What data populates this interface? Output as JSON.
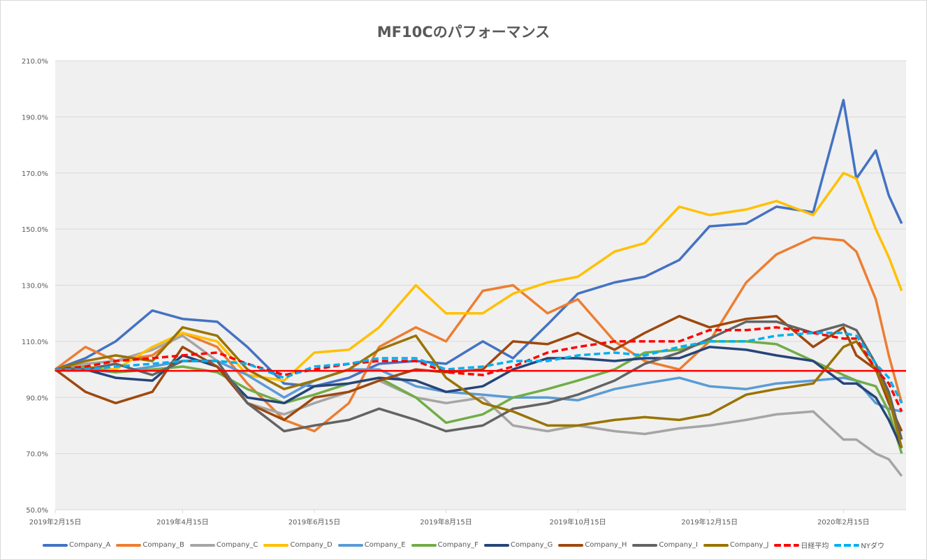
{
  "chart_data": {
    "type": "line",
    "title": "MF10Cのパフォーマンス",
    "xlabel": "",
    "ylabel": "",
    "ylim": [
      50,
      210
    ],
    "yticks": [
      50,
      70,
      90,
      110,
      130,
      150,
      170,
      190,
      210
    ],
    "ytick_labels": [
      "50.0%",
      "70.0%",
      "90.0%",
      "110.0%",
      "130.0%",
      "150.0%",
      "170.0%",
      "190.0%",
      "210.0%"
    ],
    "xlim": [
      "2019-02-15",
      "2020-03-15"
    ],
    "xticks": [
      "2019-02-15",
      "2019-04-15",
      "2019-06-15",
      "2019-08-15",
      "2019-10-15",
      "2019-12-15",
      "2020-02-15"
    ],
    "xtick_labels": [
      "2019年2月15日",
      "2019年4月15日",
      "2019年6月15日",
      "2019年8月15日",
      "2019年10月15日",
      "2019年12月15日",
      "2020年2月15日"
    ],
    "grid": true,
    "legend_position": "bottom",
    "reference_line": {
      "value": 100,
      "color": "#ff0000"
    },
    "x": [
      "2019-02-15",
      "2019-03-01",
      "2019-03-15",
      "2019-04-01",
      "2019-04-15",
      "2019-05-01",
      "2019-05-15",
      "2019-06-01",
      "2019-06-15",
      "2019-07-01",
      "2019-07-15",
      "2019-08-01",
      "2019-08-15",
      "2019-09-01",
      "2019-09-15",
      "2019-10-01",
      "2019-10-15",
      "2019-11-01",
      "2019-11-15",
      "2019-12-01",
      "2019-12-15",
      "2020-01-01",
      "2020-01-15",
      "2020-02-01",
      "2020-02-15",
      "2020-02-21",
      "2020-03-01",
      "2020-03-07",
      "2020-03-13"
    ],
    "series": [
      {
        "name": "Company_A",
        "color": "#4472c4",
        "dash": false,
        "values": [
          100,
          104,
          110,
          121,
          118,
          117,
          108,
          95,
          94,
          97,
          102,
          103,
          102,
          110,
          104,
          116,
          127,
          131,
          133,
          139,
          151,
          152,
          158,
          156,
          196,
          168,
          178,
          162,
          152
        ]
      },
      {
        "name": "Company_B",
        "color": "#ed7d31",
        "dash": false,
        "values": [
          100,
          108,
          103,
          105,
          113,
          108,
          95,
          82,
          78,
          88,
          108,
          115,
          110,
          128,
          130,
          120,
          125,
          110,
          103,
          100,
          110,
          131,
          141,
          147,
          146,
          142,
          125,
          105,
          88
        ]
      },
      {
        "name": "Company_C",
        "color": "#a5a5a5",
        "dash": false,
        "values": [
          100,
          102,
          103,
          107,
          112,
          103,
          88,
          84,
          88,
          92,
          96,
          90,
          88,
          90,
          80,
          78,
          80,
          78,
          77,
          79,
          80,
          82,
          84,
          85,
          75,
          75,
          70,
          68,
          62
        ]
      },
      {
        "name": "Company_D",
        "color": "#ffc000",
        "dash": false,
        "values": [
          100,
          101,
          100,
          108,
          113,
          110,
          98,
          96,
          106,
          107,
          115,
          130,
          120,
          120,
          127,
          131,
          133,
          142,
          145,
          158,
          155,
          157,
          160,
          155,
          170,
          168,
          150,
          140,
          128
        ]
      },
      {
        "name": "Company_E",
        "color": "#5b9bd5",
        "dash": false,
        "values": [
          100,
          100,
          99,
          101,
          103,
          103,
          98,
          90,
          96,
          100,
          100,
          94,
          92,
          91,
          90,
          90,
          89,
          93,
          95,
          97,
          94,
          93,
          95,
          96,
          97,
          96,
          88,
          86,
          85
        ]
      },
      {
        "name": "Company_F",
        "color": "#70ad47",
        "dash": false,
        "values": [
          100,
          101,
          99,
          100,
          101,
          99,
          93,
          88,
          91,
          95,
          97,
          90,
          81,
          84,
          90,
          93,
          96,
          100,
          106,
          107,
          110,
          110,
          109,
          103,
          98,
          96,
          94,
          85,
          70
        ]
      },
      {
        "name": "Company_G",
        "color": "#264478",
        "dash": false,
        "values": [
          100,
          100,
          97,
          96,
          105,
          101,
          90,
          88,
          94,
          95,
          97,
          96,
          92,
          94,
          100,
          104,
          104,
          103,
          104,
          104,
          108,
          107,
          105,
          103,
          95,
          95,
          90,
          82,
          72
        ]
      },
      {
        "name": "Company_H",
        "color": "#9e480e",
        "dash": false,
        "values": [
          100,
          92,
          88,
          92,
          108,
          101,
          88,
          82,
          90,
          92,
          96,
          100,
          99,
          100,
          110,
          109,
          113,
          107,
          113,
          119,
          115,
          118,
          119,
          108,
          115,
          105,
          100,
          88,
          78
        ]
      },
      {
        "name": "Company_I",
        "color": "#636363",
        "dash": false,
        "values": [
          100,
          100,
          102,
          98,
          103,
          103,
          88,
          78,
          80,
          82,
          86,
          82,
          78,
          80,
          86,
          88,
          91,
          96,
          102,
          106,
          111,
          117,
          117,
          113,
          116,
          114,
          102,
          92,
          75
        ]
      },
      {
        "name": "Company_J",
        "color": "#997300",
        "dash": false,
        "values": [
          100,
          103,
          105,
          103,
          115,
          112,
          100,
          93,
          96,
          100,
          107,
          112,
          97,
          88,
          85,
          80,
          80,
          82,
          83,
          82,
          84,
          91,
          93,
          95,
          108,
          110,
          100,
          90,
          72
        ]
      },
      {
        "name": "日経平均",
        "color": "#ff0000",
        "dash": true,
        "values": [
          100,
          101,
          103,
          104,
          105,
          106,
          102,
          98,
          100,
          102,
          103,
          103,
          99,
          98,
          101,
          106,
          108,
          110,
          110,
          110,
          114,
          114,
          115,
          113,
          111,
          111,
          100,
          95,
          85
        ]
      },
      {
        "name": "NYダウ",
        "color": "#00b0f0",
        "dash": true,
        "values": [
          100,
          100,
          101,
          102,
          103,
          103,
          102,
          97,
          101,
          102,
          104,
          104,
          100,
          101,
          103,
          103,
          105,
          106,
          105,
          108,
          110,
          110,
          112,
          113,
          113,
          112,
          102,
          97,
          88
        ]
      }
    ]
  }
}
